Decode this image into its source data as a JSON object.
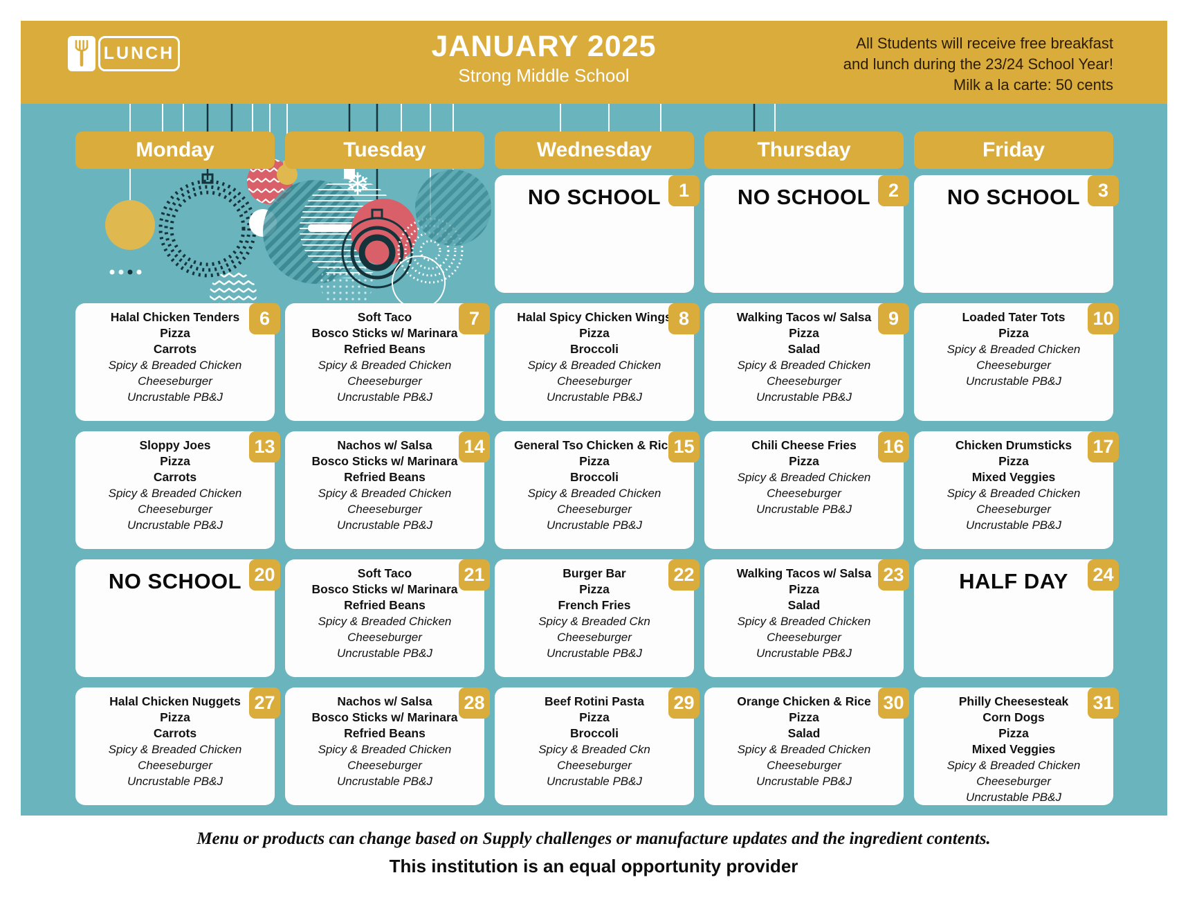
{
  "colors": {
    "gold": "#d9ac3c",
    "teal": "#6ab5bd",
    "red": "#d96069"
  },
  "page": {
    "logo_label": "LUNCH",
    "title": "JANUARY 2025",
    "subtitle": "Strong Middle School",
    "note_lines": [
      "All Students will receive free breakfast",
      "and lunch during the 23/24 School Year!",
      "Milk a la carte: 50 cents"
    ],
    "footer_note": "Menu or products can change based on Supply challenges or manufacture updates and the ingredient contents.",
    "footer_provider": "This institution is an equal opportunity provider"
  },
  "weekdays": [
    "Monday",
    "Tuesday",
    "Wednesday",
    "Thursday",
    "Friday"
  ],
  "weeks": [
    [
      null,
      null,
      {
        "day": 1,
        "special": "NO SCHOOL"
      },
      {
        "day": 2,
        "special": "NO SCHOOL"
      },
      {
        "day": 3,
        "special": "NO SCHOOL"
      }
    ],
    [
      {
        "day": 6,
        "entrees": [
          "Halal Chicken Tenders",
          "Pizza",
          "Carrots"
        ],
        "alternates": [
          "Spicy & Breaded Chicken",
          "Cheeseburger",
          "Uncrustable PB&J"
        ]
      },
      {
        "day": 7,
        "entrees": [
          "Soft Taco",
          "Bosco Sticks w/ Marinara",
          "Refried Beans"
        ],
        "alternates": [
          "Spicy & Breaded Chicken",
          "Cheeseburger",
          "Uncrustable PB&J"
        ]
      },
      {
        "day": 8,
        "entrees": [
          "Halal Spicy Chicken Wings",
          "Pizza",
          "Broccoli"
        ],
        "alternates": [
          "Spicy & Breaded Chicken",
          "Cheeseburger",
          "Uncrustable PB&J"
        ]
      },
      {
        "day": 9,
        "entrees": [
          "Walking Tacos w/ Salsa",
          "Pizza",
          "Salad"
        ],
        "alternates": [
          "Spicy & Breaded Chicken",
          "Cheeseburger",
          "Uncrustable PB&J"
        ]
      },
      {
        "day": 10,
        "entrees": [
          "Loaded Tater Tots",
          "Pizza"
        ],
        "alternates": [
          "Spicy & Breaded Chicken",
          "Cheeseburger",
          "Uncrustable PB&J"
        ]
      }
    ],
    [
      {
        "day": 13,
        "entrees": [
          "Sloppy Joes",
          "Pizza",
          "Carrots"
        ],
        "alternates": [
          "Spicy & Breaded Chicken",
          "Cheeseburger",
          "Uncrustable PB&J"
        ]
      },
      {
        "day": 14,
        "entrees": [
          "Nachos w/ Salsa",
          "Bosco Sticks w/ Marinara",
          "Refried Beans"
        ],
        "alternates": [
          "Spicy & Breaded Chicken",
          "Cheeseburger",
          "Uncrustable PB&J"
        ]
      },
      {
        "day": 15,
        "entrees": [
          "General Tso Chicken & Rice",
          "Pizza",
          "Broccoli"
        ],
        "alternates": [
          "Spicy & Breaded Chicken",
          "Cheeseburger",
          "Uncrustable PB&J"
        ]
      },
      {
        "day": 16,
        "entrees": [
          "Chili Cheese Fries",
          "Pizza"
        ],
        "alternates": [
          "Spicy & Breaded Chicken",
          "Cheeseburger",
          "Uncrustable PB&J"
        ]
      },
      {
        "day": 17,
        "entrees": [
          "Chicken Drumsticks",
          "Pizza",
          "Mixed Veggies"
        ],
        "alternates": [
          "Spicy & Breaded Chicken",
          "Cheeseburger",
          "Uncrustable PB&J"
        ]
      }
    ],
    [
      {
        "day": 20,
        "special": "NO SCHOOL"
      },
      {
        "day": 21,
        "entrees": [
          "Soft Taco",
          "Bosco Sticks w/ Marinara",
          "Refried Beans"
        ],
        "alternates": [
          "Spicy & Breaded Chicken",
          "Cheeseburger",
          "Uncrustable PB&J"
        ]
      },
      {
        "day": 22,
        "entrees": [
          "Burger Bar",
          "Pizza",
          "French Fries"
        ],
        "alternates": [
          "Spicy & Breaded Ckn",
          "Cheeseburger",
          "Uncrustable PB&J"
        ]
      },
      {
        "day": 23,
        "entrees": [
          "Walking Tacos w/ Salsa",
          "Pizza",
          "Salad"
        ],
        "alternates": [
          "Spicy & Breaded Chicken",
          "Cheeseburger",
          "Uncrustable PB&J"
        ]
      },
      {
        "day": 24,
        "special": "HALF DAY"
      }
    ],
    [
      {
        "day": 27,
        "entrees": [
          "Halal Chicken Nuggets",
          "Pizza",
          "Carrots"
        ],
        "alternates": [
          "Spicy & Breaded Chicken",
          "Cheeseburger",
          "Uncrustable PB&J"
        ]
      },
      {
        "day": 28,
        "entrees": [
          "Nachos w/ Salsa",
          "Bosco Sticks w/ Marinara",
          "Refried Beans"
        ],
        "alternates": [
          "Spicy & Breaded Chicken",
          "Cheeseburger",
          "Uncrustable PB&J"
        ]
      },
      {
        "day": 29,
        "entrees": [
          "Beef Rotini Pasta",
          "Pizza",
          "Broccoli"
        ],
        "alternates": [
          "Spicy & Breaded Ckn",
          "Cheeseburger",
          "Uncrustable PB&J"
        ]
      },
      {
        "day": 30,
        "entrees": [
          "Orange Chicken & Rice",
          "Pizza",
          "Salad"
        ],
        "alternates": [
          "Spicy & Breaded Chicken",
          "Cheeseburger",
          "Uncrustable PB&J"
        ]
      },
      {
        "day": 31,
        "entrees": [
          "Philly Cheesesteak",
          "Corn Dogs",
          "Pizza",
          "Mixed Veggies"
        ],
        "alternates": [
          "Spicy & Breaded Chicken",
          "Cheeseburger",
          "Uncrustable PB&J"
        ]
      }
    ]
  ]
}
